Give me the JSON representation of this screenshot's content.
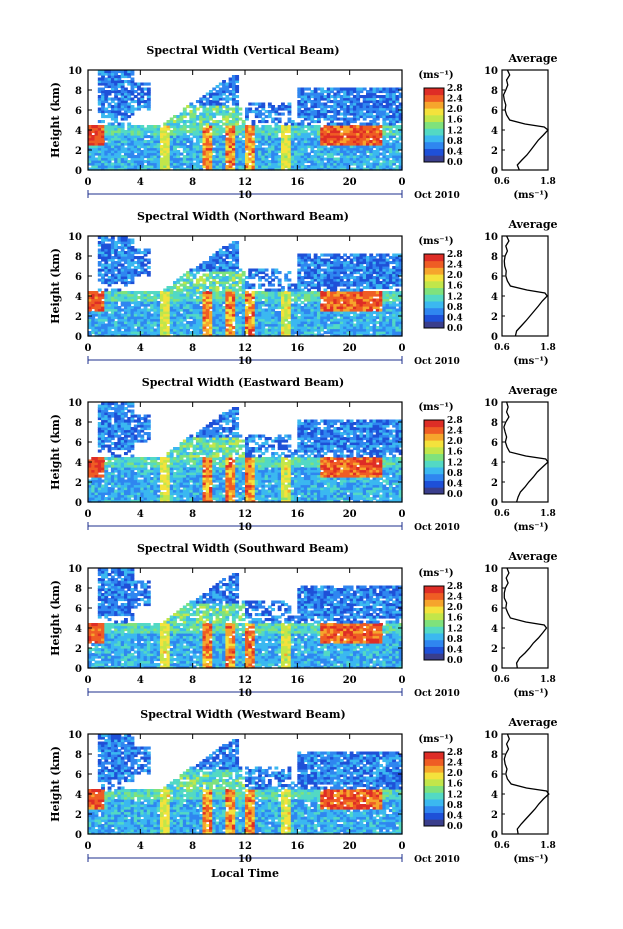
{
  "figure": {
    "xlabel": "Local Time",
    "date_label": "Oct 2010",
    "day_label": "10",
    "colorbar_unit": "(ms⁻¹)",
    "colorbar_ticks": [
      "0.0",
      "0.4",
      "0.8",
      "1.2",
      "1.6",
      "2.0",
      "2.4",
      "2.8"
    ],
    "avg_title": "Average",
    "avg_xlabel": "(ms⁻¹)",
    "colors": {
      "colormap": [
        "#3a3e8c",
        "#1e50d8",
        "#2f86f0",
        "#3bb8f0",
        "#53d9c4",
        "#7fe27c",
        "#c2e64a",
        "#f4e23c",
        "#f6a52c",
        "#ef5d24",
        "#de2d26"
      ],
      "outline": "#000000",
      "profile_line": "#000000"
    }
  },
  "chart_data": [
    {
      "type": "heatmap",
      "title": "Spectral Width (Vertical Beam)",
      "ylabel": "Height (km)",
      "xlim": [
        0,
        24
      ],
      "ylim": [
        0,
        10
      ],
      "xticks": [
        "0",
        "4",
        "8",
        "12",
        "16",
        "20",
        "0"
      ],
      "yticks": [
        "0",
        "2",
        "4",
        "6",
        "8",
        "10"
      ],
      "clim": [
        0.0,
        3.0
      ],
      "profile": {
        "type": "line",
        "title": "Average",
        "xlim": [
          0.6,
          1.8
        ],
        "ylim": [
          0,
          10
        ],
        "xticks": [
          "0.6",
          "1.8"
        ],
        "yticks": [
          "0",
          "2",
          "4",
          "6",
          "8",
          "10"
        ],
        "heights": [
          0,
          0.5,
          1,
          1.5,
          2,
          2.5,
          3,
          3.5,
          4,
          4.3,
          4.6,
          5,
          5.5,
          6,
          6.5,
          7,
          7.5,
          8,
          8.5,
          9,
          9.5,
          10
        ],
        "values": [
          1.05,
          1.0,
          1.12,
          1.25,
          1.35,
          1.45,
          1.55,
          1.68,
          1.8,
          1.7,
          1.2,
          0.8,
          0.72,
          0.68,
          0.7,
          0.66,
          0.64,
          0.7,
          0.75,
          0.72,
          0.8,
          0.74
        ]
      }
    },
    {
      "type": "heatmap",
      "title": "Spectral Width (Northward Beam)",
      "ylabel": "Height (km)",
      "xlim": [
        0,
        24
      ],
      "ylim": [
        0,
        10
      ],
      "xticks": [
        "0",
        "4",
        "8",
        "12",
        "16",
        "20",
        "0"
      ],
      "yticks": [
        "0",
        "2",
        "4",
        "6",
        "8",
        "10"
      ],
      "clim": [
        0.0,
        3.0
      ],
      "profile": {
        "type": "line",
        "title": "Average",
        "xlim": [
          0.6,
          1.8
        ],
        "ylim": [
          0,
          10
        ],
        "xticks": [
          "0.6",
          "1.8"
        ],
        "yticks": [
          "0",
          "2",
          "4",
          "6",
          "8",
          "10"
        ],
        "heights": [
          0,
          0.5,
          1,
          1.5,
          2,
          2.5,
          3,
          3.5,
          4,
          4.3,
          4.6,
          5,
          5.5,
          6,
          6.5,
          7,
          7.5,
          8,
          8.5,
          9,
          9.5,
          10
        ],
        "values": [
          0.95,
          0.98,
          1.1,
          1.22,
          1.33,
          1.44,
          1.55,
          1.65,
          1.78,
          1.72,
          1.25,
          0.82,
          0.74,
          0.7,
          0.71,
          0.67,
          0.66,
          0.68,
          0.74,
          0.7,
          0.78,
          0.72
        ]
      }
    },
    {
      "type": "heatmap",
      "title": "Spectral Width (Eastward Beam)",
      "ylabel": "Height (km)",
      "xlim": [
        0,
        24
      ],
      "ylim": [
        0,
        10
      ],
      "xticks": [
        "0",
        "4",
        "8",
        "12",
        "16",
        "20",
        "0"
      ],
      "yticks": [
        "0",
        "2",
        "4",
        "6",
        "8",
        "10"
      ],
      "clim": [
        0.0,
        3.0
      ],
      "profile": {
        "type": "line",
        "title": "Average",
        "xlim": [
          0.6,
          1.8
        ],
        "ylim": [
          0,
          10
        ],
        "xticks": [
          "0.6",
          "1.8"
        ],
        "yticks": [
          "0",
          "2",
          "4",
          "6",
          "8",
          "10"
        ],
        "heights": [
          0,
          0.5,
          1,
          1.5,
          2,
          2.5,
          3,
          3.5,
          4,
          4.3,
          4.6,
          5,
          5.5,
          6,
          6.5,
          7,
          7.5,
          8,
          8.5,
          9,
          9.5,
          10
        ],
        "values": [
          0.98,
          1.02,
          1.08,
          1.2,
          1.3,
          1.42,
          1.52,
          1.66,
          1.8,
          1.74,
          1.22,
          0.8,
          0.73,
          0.69,
          0.72,
          0.68,
          0.65,
          0.7,
          0.78,
          0.72,
          0.76,
          0.72
        ]
      }
    },
    {
      "type": "heatmap",
      "title": "Spectral Width (Southward Beam)",
      "ylabel": "Height (km)",
      "xlim": [
        0,
        24
      ],
      "ylim": [
        0,
        10
      ],
      "xticks": [
        "0",
        "4",
        "8",
        "12",
        "16",
        "20",
        "0"
      ],
      "yticks": [
        "0",
        "2",
        "4",
        "6",
        "8",
        "10"
      ],
      "clim": [
        0.0,
        3.0
      ],
      "profile": {
        "type": "line",
        "title": "Average",
        "xlim": [
          0.6,
          1.8
        ],
        "ylim": [
          0,
          10
        ],
        "xticks": [
          "0.6",
          "1.8"
        ],
        "yticks": [
          "0",
          "2",
          "4",
          "6",
          "8",
          "10"
        ],
        "heights": [
          0,
          0.5,
          1,
          1.5,
          2,
          2.5,
          3,
          3.5,
          4,
          4.3,
          4.6,
          5,
          5.5,
          6,
          6.5,
          7,
          7.5,
          8,
          8.5,
          9,
          9.5,
          10
        ],
        "values": [
          1.0,
          0.98,
          1.06,
          1.2,
          1.32,
          1.42,
          1.55,
          1.66,
          1.76,
          1.7,
          1.22,
          0.82,
          0.75,
          0.7,
          0.72,
          0.66,
          0.66,
          0.69,
          0.76,
          0.71,
          0.78,
          0.73
        ]
      }
    },
    {
      "type": "heatmap",
      "title": "Spectral Width (Westward Beam)",
      "ylabel": "Height (km)",
      "xlim": [
        0,
        24
      ],
      "ylim": [
        0,
        10
      ],
      "xticks": [
        "0",
        "4",
        "8",
        "12",
        "16",
        "20",
        "0"
      ],
      "yticks": [
        "0",
        "2",
        "4",
        "6",
        "8",
        "10"
      ],
      "clim": [
        0.0,
        3.0
      ],
      "profile": {
        "type": "line",
        "title": "Average",
        "xlim": [
          0.6,
          1.8
        ],
        "ylim": [
          0,
          10
        ],
        "xticks": [
          "0.6",
          "1.8"
        ],
        "yticks": [
          "0",
          "2",
          "4",
          "6",
          "8",
          "10"
        ],
        "heights": [
          0,
          0.5,
          1,
          1.5,
          2,
          2.5,
          3,
          3.5,
          4,
          4.3,
          4.6,
          5,
          5.5,
          6,
          6.5,
          7,
          7.5,
          8,
          8.5,
          9,
          9.5,
          10
        ],
        "values": [
          1.02,
          1.0,
          1.1,
          1.22,
          1.34,
          1.46,
          1.56,
          1.68,
          1.82,
          1.76,
          1.24,
          0.84,
          0.74,
          0.7,
          0.73,
          0.68,
          0.66,
          0.7,
          0.77,
          0.72,
          0.79,
          0.74
        ]
      }
    }
  ]
}
